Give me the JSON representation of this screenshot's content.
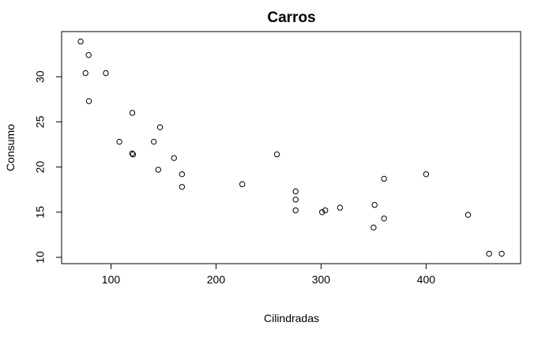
{
  "chart_data": {
    "type": "scatter",
    "title": "Carros",
    "xlabel": "Cilindradas",
    "ylabel": "Consumo",
    "xlim": [
      53,
      490
    ],
    "ylim": [
      9.3,
      35
    ],
    "xticks": [
      100,
      200,
      300,
      400
    ],
    "yticks": [
      10,
      15,
      20,
      25,
      30
    ],
    "grid": false,
    "marker": "open-circle",
    "points": [
      {
        "x": 71.1,
        "y": 33.9
      },
      {
        "x": 75.7,
        "y": 30.4
      },
      {
        "x": 78.7,
        "y": 32.4
      },
      {
        "x": 79.0,
        "y": 27.3
      },
      {
        "x": 95.1,
        "y": 30.4
      },
      {
        "x": 108.0,
        "y": 22.8
      },
      {
        "x": 120.1,
        "y": 21.5
      },
      {
        "x": 120.3,
        "y": 26.0
      },
      {
        "x": 121.0,
        "y": 21.4
      },
      {
        "x": 140.8,
        "y": 22.8
      },
      {
        "x": 145.0,
        "y": 19.7
      },
      {
        "x": 146.7,
        "y": 24.4
      },
      {
        "x": 160.0,
        "y": 21.0
      },
      {
        "x": 167.6,
        "y": 19.2
      },
      {
        "x": 167.6,
        "y": 17.8
      },
      {
        "x": 225.0,
        "y": 18.1
      },
      {
        "x": 258.0,
        "y": 21.4
      },
      {
        "x": 275.8,
        "y": 16.4
      },
      {
        "x": 275.8,
        "y": 17.3
      },
      {
        "x": 275.8,
        "y": 15.2
      },
      {
        "x": 301.0,
        "y": 15.0
      },
      {
        "x": 304.0,
        "y": 15.2
      },
      {
        "x": 318.0,
        "y": 15.5
      },
      {
        "x": 350.0,
        "y": 13.3
      },
      {
        "x": 351.0,
        "y": 15.8
      },
      {
        "x": 360.0,
        "y": 18.7
      },
      {
        "x": 360.0,
        "y": 14.3
      },
      {
        "x": 400.0,
        "y": 19.2
      },
      {
        "x": 440.0,
        "y": 14.7
      },
      {
        "x": 460.0,
        "y": 10.4
      },
      {
        "x": 472.0,
        "y": 10.4
      }
    ]
  }
}
